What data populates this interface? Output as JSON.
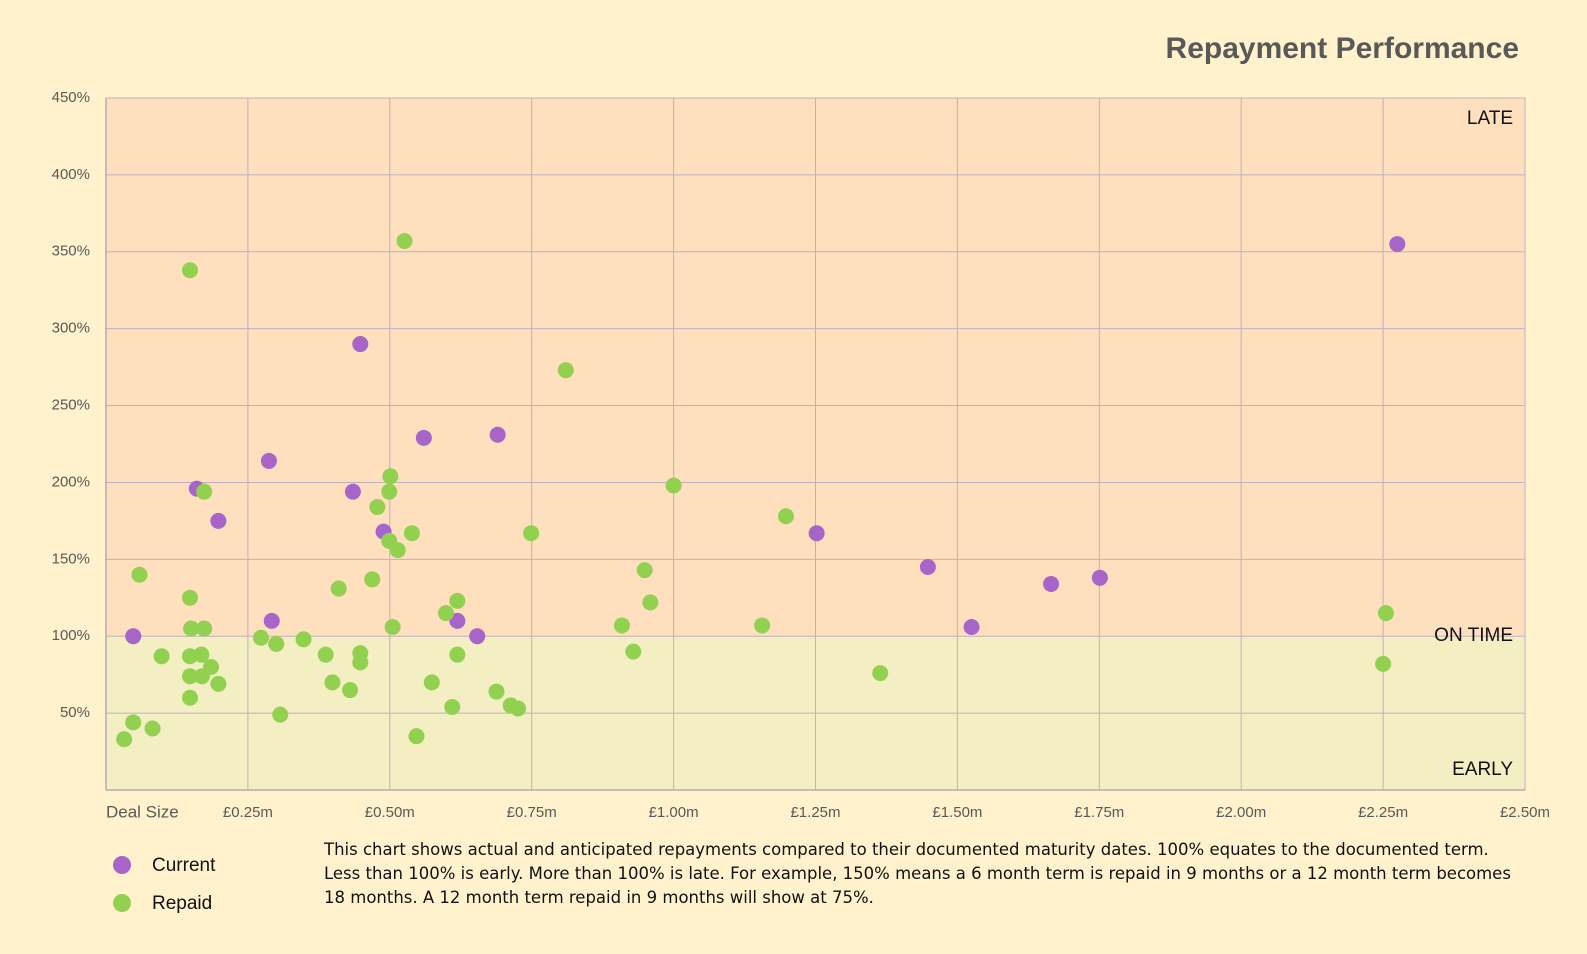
{
  "chart_data": {
    "type": "scatter",
    "title": "Repayment Performance",
    "xlabel": "Deal Size",
    "note": "This chart shows actual and anticipated repayments compared to their documented maturity dates.  100% equates to the documented term.  Less than 100% is early.  More than 100% is late.  For example, 150% means a 6 month term is repaid in 9 months or a 12 month term becomes 18 months.  A 12 month term repaid in 9 months will show at 75%.",
    "zone_labels": [
      "LATE",
      "ON TIME",
      "EARLY"
    ],
    "bands": [
      {
        "from": 0,
        "to": 100,
        "color": "#f4eec3"
      },
      {
        "from": 100,
        "to": 450,
        "color": "#fedfbe"
      }
    ],
    "xlim": [
      0,
      2.5
    ],
    "xticks": [
      {
        "value": 0.25,
        "label": "£0.25m"
      },
      {
        "value": 0.5,
        "label": "£0.50m"
      },
      {
        "value": 0.75,
        "label": "£0.75m"
      },
      {
        "value": 1.0,
        "label": "£1.00m"
      },
      {
        "value": 1.25,
        "label": "£1.25m"
      },
      {
        "value": 1.5,
        "label": "£1.50m"
      },
      {
        "value": 1.75,
        "label": "£1.75m"
      },
      {
        "value": 2.0,
        "label": "£2.00m"
      },
      {
        "value": 2.25,
        "label": "£2.25m"
      },
      {
        "value": 2.5,
        "label": "£2.50m"
      }
    ],
    "ylim": [
      0,
      450
    ],
    "yticks": [
      {
        "value": 50,
        "label": "50%"
      },
      {
        "value": 100,
        "label": "100%"
      },
      {
        "value": 150,
        "label": "150%"
      },
      {
        "value": 200,
        "label": "200%"
      },
      {
        "value": 250,
        "label": "250%"
      },
      {
        "value": 300,
        "label": "300%"
      },
      {
        "value": 350,
        "label": "350%"
      },
      {
        "value": 400,
        "label": "400%"
      },
      {
        "value": 450,
        "label": "450%"
      }
    ],
    "grid": true,
    "legend": "bottom-left",
    "series": [
      {
        "name": "Current",
        "color": "#a865c9",
        "x": [
          0.048,
          0.16,
          0.198,
          0.287,
          0.292,
          0.448,
          0.435,
          0.489,
          0.56,
          0.619,
          0.654,
          0.69,
          1.252,
          1.448,
          1.525,
          1.665,
          1.751,
          2.275
        ],
        "values": [
          100,
          196,
          175,
          214,
          110,
          290,
          194,
          168,
          229,
          110,
          100,
          231,
          167,
          145,
          106,
          134,
          138,
          355
        ]
      },
      {
        "name": "Repaid",
        "color": "#92d050",
        "x": [
          0.032,
          0.048,
          0.082,
          0.059,
          0.098,
          0.148,
          0.173,
          0.148,
          0.15,
          0.173,
          0.148,
          0.168,
          0.185,
          0.148,
          0.169,
          0.198,
          0.148,
          0.273,
          0.3,
          0.307,
          0.348,
          0.387,
          0.399,
          0.41,
          0.43,
          0.448,
          0.448,
          0.469,
          0.478,
          0.501,
          0.499,
          0.499,
          0.514,
          0.505,
          0.526,
          0.539,
          0.547,
          0.574,
          0.599,
          0.61,
          0.619,
          0.619,
          0.688,
          0.713,
          0.726,
          0.749,
          0.81,
          0.909,
          0.929,
          0.949,
          0.959,
          1.0,
          1.156,
          1.198,
          1.364,
          2.25,
          2.255
        ],
        "values": [
          33,
          44,
          40,
          140,
          87,
          338,
          194,
          125,
          105,
          105,
          87,
          88,
          80,
          74,
          74,
          69,
          60,
          99,
          95,
          49,
          98,
          88,
          70,
          131,
          65,
          89,
          83,
          137,
          184,
          204,
          194,
          162,
          156,
          106,
          357,
          167,
          35,
          70,
          115,
          54,
          123,
          88,
          64,
          55,
          53,
          167,
          273,
          107,
          90,
          143,
          122,
          198,
          107,
          178,
          76,
          82,
          115
        ]
      }
    ]
  }
}
